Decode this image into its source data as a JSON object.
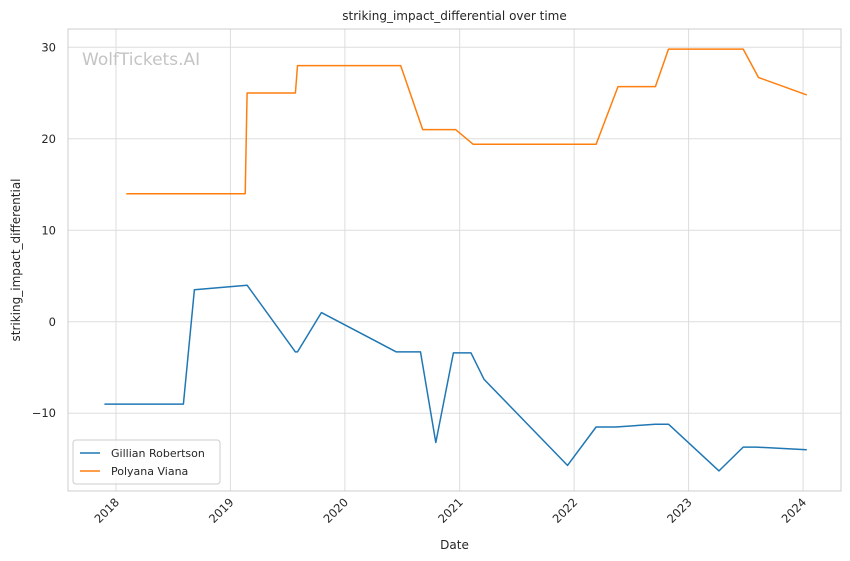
{
  "chart_data": {
    "type": "line",
    "title": "striking_impact_differential over time",
    "xlabel": "Date",
    "ylabel": "striking_impact_differential",
    "watermark": "WolfTickets.AI",
    "x_ticks": [
      "2018",
      "2019",
      "2020",
      "2021",
      "2022",
      "2023",
      "2024"
    ],
    "y_ticks": [
      "−10",
      "0",
      "10",
      "20",
      "30"
    ],
    "xlim": [
      "2017-08-01",
      "2024-05-01"
    ],
    "ylim": [
      -18.5,
      32
    ],
    "grid": true,
    "legend_position": "lower-left",
    "series": [
      {
        "name": "Gillian Robertson",
        "color": "#1f77b4",
        "points": [
          [
            "2017-11-25",
            -9.0
          ],
          [
            "2018-08-04",
            -9.0
          ],
          [
            "2018-09-08",
            3.5
          ],
          [
            "2019-02-23",
            4.0
          ],
          [
            "2019-07-27",
            -3.3
          ],
          [
            "2019-08-03",
            -3.3
          ],
          [
            "2019-10-18",
            1.0
          ],
          [
            "2020-06-13",
            -3.3
          ],
          [
            "2020-08-29",
            -3.3
          ],
          [
            "2020-10-17",
            -13.2
          ],
          [
            "2020-12-12",
            -3.4
          ],
          [
            "2021-02-06",
            -3.4
          ],
          [
            "2021-03-20",
            -6.3
          ],
          [
            "2021-12-11",
            -15.7
          ],
          [
            "2022-03-12",
            -11.5
          ],
          [
            "2022-05-14",
            -11.5
          ],
          [
            "2022-09-17",
            -11.2
          ],
          [
            "2022-10-29",
            -11.2
          ],
          [
            "2023-04-08",
            -16.3
          ],
          [
            "2023-06-24",
            -13.7
          ],
          [
            "2023-08-05",
            -13.7
          ],
          [
            "2024-01-13",
            -14.0
          ]
        ]
      },
      {
        "name": "Polyana Viana",
        "color": "#ff7f0e",
        "points": [
          [
            "2018-02-03",
            14.0
          ],
          [
            "2019-02-17",
            14.0
          ],
          [
            "2019-02-23",
            25.0
          ],
          [
            "2019-07-27",
            25.0
          ],
          [
            "2019-08-03",
            28.0
          ],
          [
            "2020-06-27",
            28.0
          ],
          [
            "2020-09-05",
            21.0
          ],
          [
            "2020-12-19",
            21.0
          ],
          [
            "2021-02-13",
            19.4
          ],
          [
            "2022-03-12",
            19.4
          ],
          [
            "2022-05-21",
            25.7
          ],
          [
            "2022-09-17",
            25.7
          ],
          [
            "2022-10-29",
            29.8
          ],
          [
            "2023-06-24",
            29.8
          ],
          [
            "2023-08-12",
            26.7
          ],
          [
            "2024-01-13",
            24.8
          ]
        ]
      }
    ]
  }
}
